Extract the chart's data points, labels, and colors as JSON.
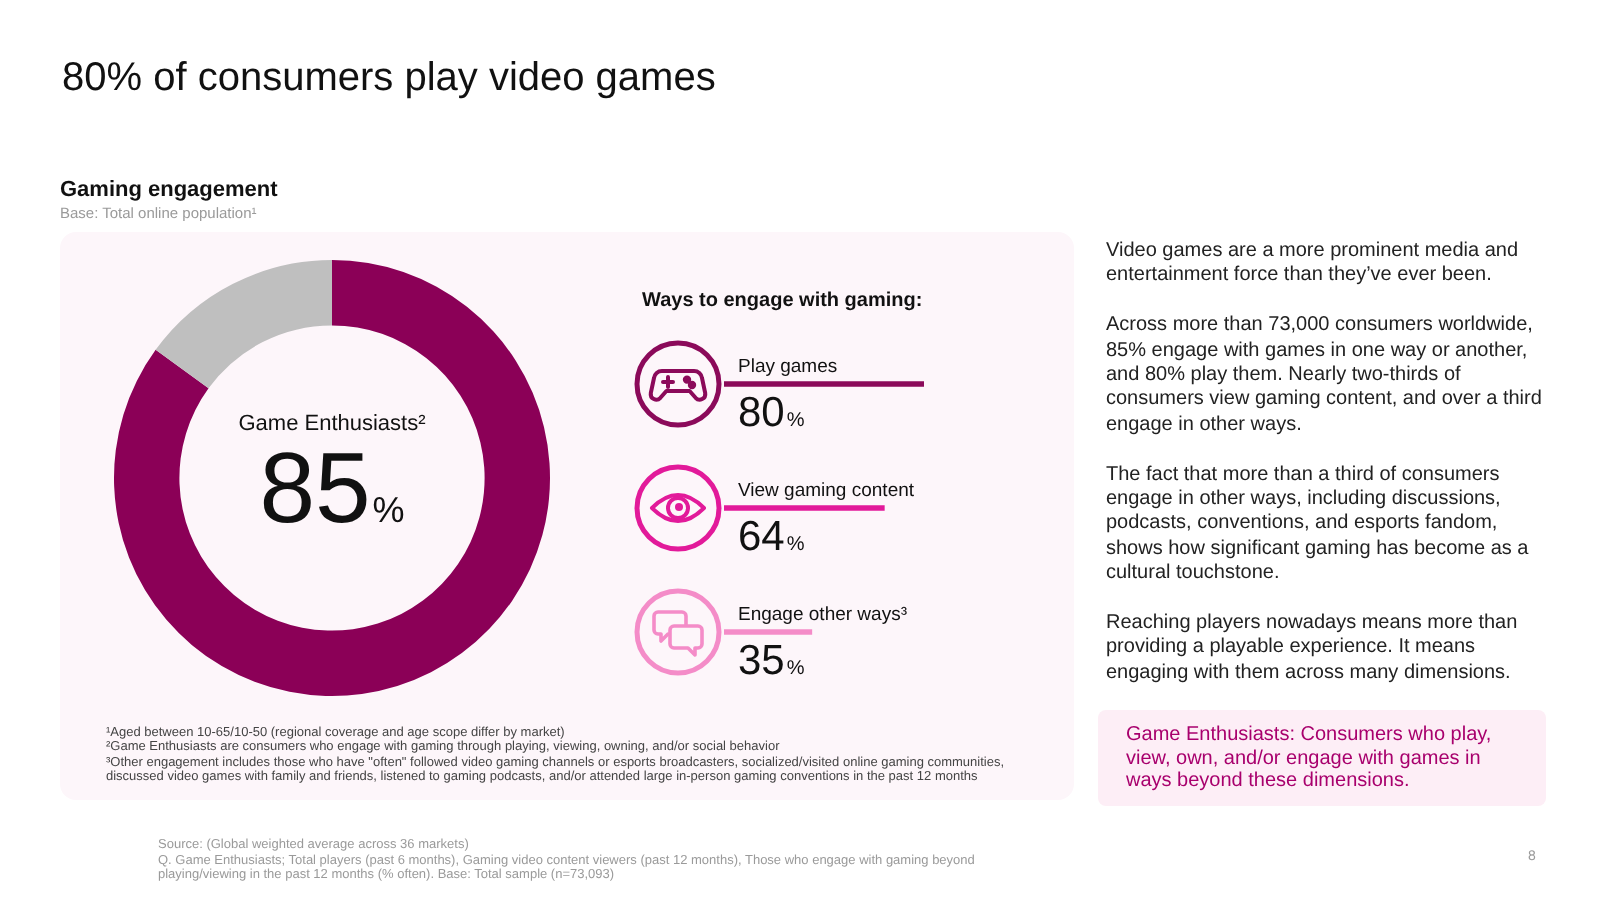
{
  "chart_data": [
    {
      "type": "donut",
      "title": "80% of consumers play video games",
      "subtitle": "Gaming engagement",
      "categories": [
        "Game Enthusiasts²",
        null
      ],
      "values": [
        85,
        15
      ],
      "colors": [
        "#8b0057",
        "#bfbfbf"
      ],
      "value_labels": [
        "85%",
        null
      ],
      "annotations": [
        "Base: Total online population¹",
        "¹Aged between 10-65/10-50 (regional coverage and age scope differ by market)",
        "²Game Enthusiasts are consumers who engage with gaming through playing, viewing, owning, and/or social behavior",
        "³Other engagement includes those who have \"often\" followed video gaming channels or esports broadcasters, socialized/visited online gaming communities, discussed video games with family and friends, listened to gaming podcasts, and/or attended large in-person gaming conventions in the past 12 months",
        "Source: (Global weighted average across 36 markets)",
        "Q. Game Enthusiasts; Total players (past 6 months), Gaming video content viewers (past 12 months), Those who engage with gaming beyond playing/viewing in the past 12 months (% often). Base: Total sample (n=73,093)",
        "8"
      ]
    },
    {
      "type": "bar",
      "orientation": "horizontal",
      "title": "Ways to engage with gaming:",
      "categories": [
        "Play games",
        "View gaming content",
        "Engage other ways³"
      ],
      "values": [
        80,
        64,
        35
      ],
      "colors": [
        "#8b0a5a",
        "#e21a9a",
        "#f48cc8"
      ],
      "value_labels": [
        "80%",
        "64%",
        "35%"
      ]
    },
    {
      "type": "other",
      "annotations": [
        "Video games are a more prominent media and entertainment force than they’ve ever been.",
        "Across more than 73,000 consumers worldwide, 85% engage with games in one way or another, and 80% play them. Nearly two-thirds of consumers view gaming content, and over a third engage in other ways.",
        "The fact that more than a third of consumers engage in other ways, including discussions, podcasts, conventions, and esports fandom, shows how significant gaming has become as a cultural touchstone.",
        "Reaching players nowadays means more than providing a playable experience. It means engaging with them across many dimensions.",
        "Game Enthusiasts: Consumers who play, view, own, and/or engage with games in ways beyond these dimensions."
      ]
    }
  ]
}
